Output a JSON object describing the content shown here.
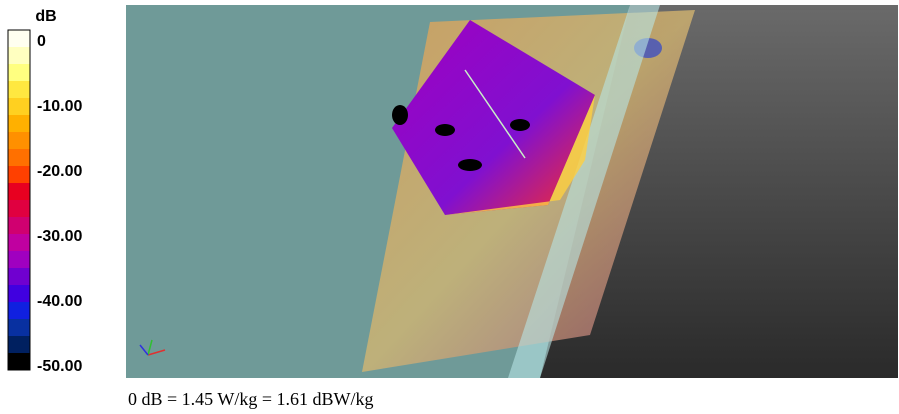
{
  "colorbar": {
    "unit": "dB",
    "labels": [
      "0",
      "-10.00",
      "-20.00",
      "-30.00",
      "-40.00",
      "-50.00"
    ],
    "colors": [
      "#fffff0",
      "#ffffc0",
      "#ffff80",
      "#ffe840",
      "#ffd020",
      "#ffb000",
      "#ff9000",
      "#ff7000",
      "#ff4000",
      "#e80020",
      "#e00040",
      "#d00070",
      "#c000a0",
      "#a000c0",
      "#7000d0",
      "#4000e0",
      "#1020e0",
      "#0830a0",
      "#002060",
      "#000000"
    ]
  },
  "caption": "0 dB = 1.45 W/kg = 1.61 dBW/kg"
}
